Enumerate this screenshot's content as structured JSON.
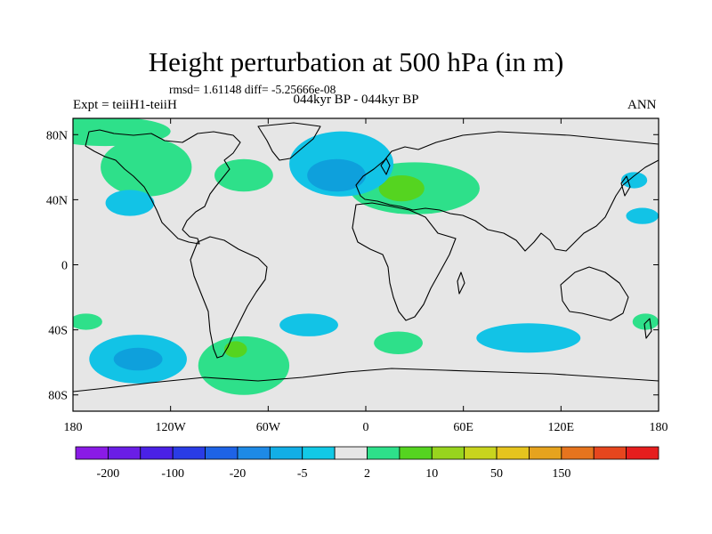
{
  "title": "Height perturbation at 500 hPa (in m)",
  "stats": "rmsd= 1.61148 diff= -5.25666e-08",
  "experiment": "Expt = teiiH1-teiiH",
  "period": "044kyr BP - 044kyr BP",
  "season": "ANN",
  "map": {
    "lon_range": [
      -180,
      180
    ],
    "lat_range": [
      -90,
      90
    ],
    "x_ticks": [
      {
        "lon": -180,
        "label": "180"
      },
      {
        "lon": -120,
        "label": "120W"
      },
      {
        "lon": -60,
        "label": "60W"
      },
      {
        "lon": 0,
        "label": "0"
      },
      {
        "lon": 60,
        "label": "60E"
      },
      {
        "lon": 120,
        "label": "120E"
      },
      {
        "lon": 180,
        "label": "180"
      }
    ],
    "y_ticks": [
      {
        "lat": 80,
        "label": "80N"
      },
      {
        "lat": 40,
        "label": "40N"
      },
      {
        "lat": 0,
        "label": "0"
      },
      {
        "lat": -40,
        "label": "40S"
      },
      {
        "lat": -80,
        "label": "80S"
      }
    ],
    "background_color": "#e6e6e6",
    "features": [
      {
        "name": "pos-anomaly-north-pacific",
        "lon": -135,
        "lat": 60,
        "rx": 28,
        "ry": 18,
        "color": "#2ee08a"
      },
      {
        "name": "pos-anomaly-arctic-west",
        "lon": -160,
        "lat": 82,
        "rx": 40,
        "ry": 9,
        "color": "#2ee08a"
      },
      {
        "name": "pos-anomaly-north-america",
        "lon": -75,
        "lat": 55,
        "rx": 18,
        "ry": 10,
        "color": "#2ee08a"
      },
      {
        "name": "pos-anomaly-eurasia",
        "lon": 30,
        "lat": 47,
        "rx": 40,
        "ry": 16,
        "color": "#2ee08a"
      },
      {
        "name": "pos-core-europe",
        "lon": 22,
        "lat": 47,
        "rx": 14,
        "ry": 8,
        "color": "#55d420"
      },
      {
        "name": "pos-anomaly-south-pacific",
        "lon": -75,
        "lat": -62,
        "rx": 28,
        "ry": 18,
        "color": "#2ee08a"
      },
      {
        "name": "pos-core-south-pacific",
        "lon": -80,
        "lat": -52,
        "rx": 7,
        "ry": 5,
        "color": "#55d420"
      },
      {
        "name": "pos-anomaly-south-atlantic",
        "lon": 20,
        "lat": -48,
        "rx": 15,
        "ry": 7,
        "color": "#2ee08a"
      },
      {
        "name": "pos-anomaly-west-edge",
        "lon": -172,
        "lat": -35,
        "rx": 10,
        "ry": 5,
        "color": "#2ee08a"
      },
      {
        "name": "pos-anomaly-east-edge",
        "lon": 172,
        "lat": -35,
        "rx": 8,
        "ry": 5,
        "color": "#2ee08a"
      },
      {
        "name": "neg-anomaly-north-atlantic",
        "lon": -15,
        "lat": 62,
        "rx": 32,
        "ry": 20,
        "color": "#12c3e6"
      },
      {
        "name": "neg-core-north-atlantic",
        "lon": -18,
        "lat": 55,
        "rx": 18,
        "ry": 10,
        "color": "#0ea0dc"
      },
      {
        "name": "neg-anomaly-pacific-north",
        "lon": -145,
        "lat": 38,
        "rx": 15,
        "ry": 8,
        "color": "#12c3e6"
      },
      {
        "name": "neg-anomaly-east-pacific",
        "lon": 165,
        "lat": 52,
        "rx": 8,
        "ry": 5,
        "color": "#12c3e6"
      },
      {
        "name": "neg-anomaly-east-pacific-2",
        "lon": 170,
        "lat": 30,
        "rx": 10,
        "ry": 5,
        "color": "#12c3e6"
      },
      {
        "name": "neg-anomaly-south-pacific",
        "lon": -140,
        "lat": -58,
        "rx": 30,
        "ry": 15,
        "color": "#12c3e6"
      },
      {
        "name": "neg-core-south-pacific",
        "lon": -140,
        "lat": -58,
        "rx": 15,
        "ry": 7,
        "color": "#0ea0dc"
      },
      {
        "name": "neg-anomaly-south-america-east",
        "lon": -35,
        "lat": -37,
        "rx": 18,
        "ry": 7,
        "color": "#12c3e6"
      },
      {
        "name": "neg-anomaly-indian-ocean",
        "lon": 100,
        "lat": -45,
        "rx": 32,
        "ry": 9,
        "color": "#12c3e6"
      }
    ]
  },
  "colorbar": {
    "colors": [
      "#8a1be6",
      "#6a1ee6",
      "#4a21e6",
      "#2a3ce6",
      "#1e63e6",
      "#1e8ae6",
      "#12aee6",
      "#12c9e6",
      "#e6e6e6",
      "#2ee08a",
      "#55d420",
      "#98d41e",
      "#c8d41e",
      "#e6c41e",
      "#e6a31e",
      "#e6741e",
      "#e6461e",
      "#e61e1e"
    ],
    "labels": [
      {
        "boundary": 1,
        "text": "-200"
      },
      {
        "boundary": 3,
        "text": "-100"
      },
      {
        "boundary": 5,
        "text": "-20"
      },
      {
        "boundary": 7,
        "text": "-5"
      },
      {
        "boundary": 9,
        "text": "2"
      },
      {
        "boundary": 11,
        "text": "10"
      },
      {
        "boundary": 13,
        "text": "50"
      },
      {
        "boundary": 15,
        "text": "150"
      }
    ]
  }
}
